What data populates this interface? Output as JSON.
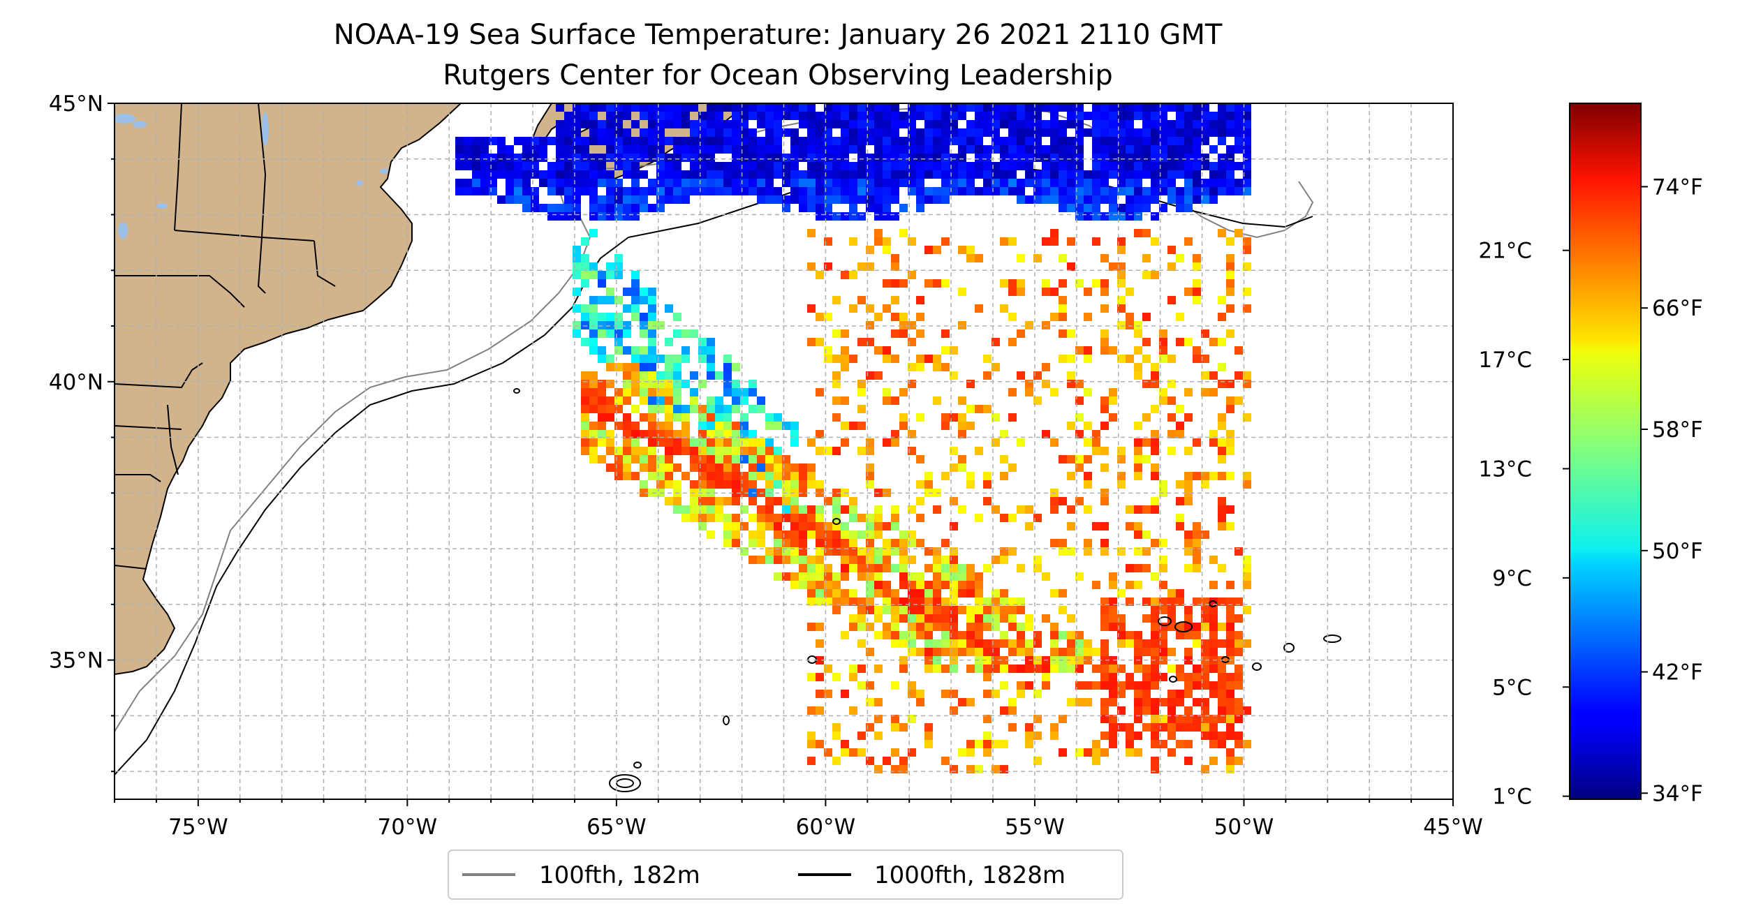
{
  "title": {
    "line1": "NOAA-19 Sea Surface Temperature: January 26 2021 2110 GMT",
    "line2": "Rutgers Center for Ocean Observing Leadership"
  },
  "map": {
    "lon_range": [
      -77,
      -45
    ],
    "lat_range": [
      32.5,
      45
    ],
    "grid": true,
    "lat_ticks": [
      {
        "value": 45,
        "label": "45°N"
      },
      {
        "value": 40,
        "label": "40°N"
      },
      {
        "value": 35,
        "label": "35°N"
      }
    ],
    "lon_ticks": [
      {
        "value": -75,
        "label": "75°W"
      },
      {
        "value": -70,
        "label": "70°W"
      },
      {
        "value": -65,
        "label": "65°W"
      },
      {
        "value": -60,
        "label": "60°W"
      },
      {
        "value": -55,
        "label": "55°W"
      },
      {
        "value": -50,
        "label": "50°W"
      },
      {
        "value": -45,
        "label": "45°W"
      }
    ],
    "land_color": "#d2b48c",
    "lake_color": "#9cc0e8",
    "ocean_color": "#ffffff"
  },
  "colorbar": {
    "colormap": "jet",
    "celsius_ticks": [
      {
        "value": 1,
        "label": "1°C"
      },
      {
        "value": 5,
        "label": "5°C"
      },
      {
        "value": 9,
        "label": "9°C"
      },
      {
        "value": 13,
        "label": "13°C"
      },
      {
        "value": 17,
        "label": "17°C"
      },
      {
        "value": 21,
        "label": "21°C"
      }
    ],
    "fahrenheit_ticks": [
      {
        "value": 34,
        "label": "34°F"
      },
      {
        "value": 42,
        "label": "42°F"
      },
      {
        "value": 50,
        "label": "50°F"
      },
      {
        "value": 58,
        "label": "58°F"
      },
      {
        "value": 66,
        "label": "66°F"
      },
      {
        "value": 74,
        "label": "74°F"
      }
    ],
    "range_f": [
      33.6,
      79.5
    ]
  },
  "legend": {
    "placement": "bottom-center",
    "items": [
      {
        "label": "100fth, 182m",
        "color": "#808080"
      },
      {
        "label": "1000fth, 1828m",
        "color": "#000000"
      }
    ]
  }
}
